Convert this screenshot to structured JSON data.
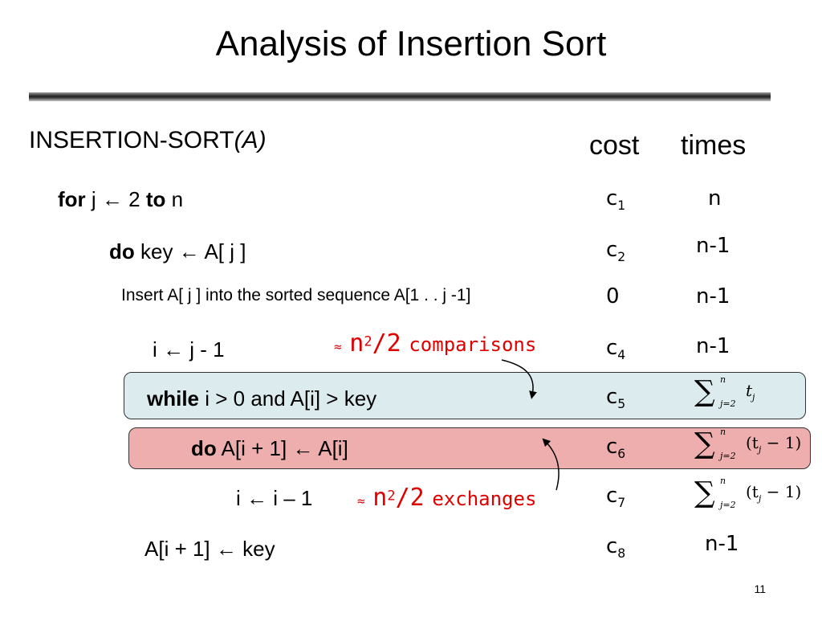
{
  "slide": {
    "title": "Analysis of Insertion Sort",
    "page_number": "11"
  },
  "algorithm": {
    "name": "INSERTION-SORT",
    "param": "(A)"
  },
  "headers": {
    "cost": "cost",
    "times": "times"
  },
  "lines": [
    {
      "kw": "for",
      "text": " j ← 2 ",
      "kw2": "to",
      "text2": " n",
      "cost": "c",
      "cost_sub": "1",
      "times": "n"
    },
    {
      "kw": "do",
      "text": " key ← A[ j ]",
      "cost": "c",
      "cost_sub": "2",
      "times": "n-1"
    },
    {
      "text": "Insert A[ j ] into the sorted sequence A[1 . . j -1]",
      "cost": "0",
      "times": "n-1"
    },
    {
      "text": "i ← j - 1",
      "cost": "c",
      "cost_sub": "4",
      "times": "n-1"
    },
    {
      "kw": "while",
      "text": " i > 0 and A[i] > key",
      "cost": "c",
      "cost_sub": "5"
    },
    {
      "kw": "do",
      "text": " A[i + 1] ← A[i]",
      "cost": "c",
      "cost_sub": "6"
    },
    {
      "text": "i ← i – 1",
      "cost": "c",
      "cost_sub": "7"
    },
    {
      "text": "A[i + 1] ← key",
      "cost": "c",
      "cost_sub": "8",
      "times": "n-1"
    }
  ],
  "sums": {
    "upper": "n",
    "lower": "j=2",
    "sum5_body": "t",
    "sum5_sub": "j",
    "sum67_open": "(t",
    "sum67_sub": "j",
    "sum67_close": " − 1)"
  },
  "annotations": {
    "comparisons": {
      "approx": "≈",
      "n": "n",
      "exp": "2",
      "rest": "/2",
      "label": "comparisons"
    },
    "exchanges": {
      "approx": "≈",
      "n": "n",
      "exp": "2",
      "rest": "/2",
      "label": "exchanges"
    }
  },
  "colors": {
    "annotation_red": "#e00000",
    "while_box_fill": "#dcecee",
    "do_box_fill": "#efaeae",
    "box_border": "#333333"
  }
}
